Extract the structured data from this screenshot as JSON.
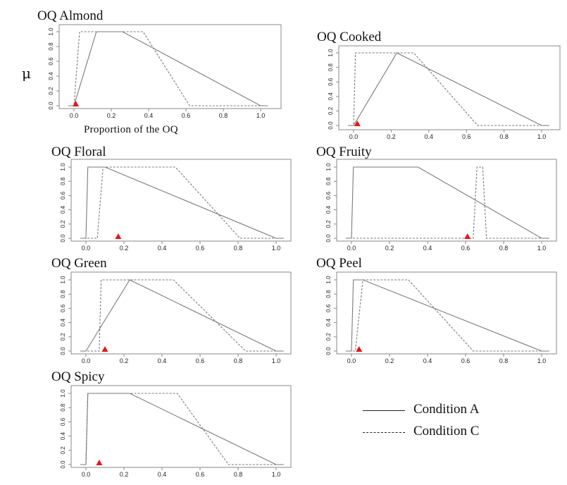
{
  "y_symbol": "μ",
  "x_axis_label": "Proportion of the OQ",
  "legend": {
    "solid_label": "Condition A",
    "dashed_label": "Condition C"
  },
  "colors": {
    "marker": "#e8141c",
    "line": "#7a7a7a",
    "frame": "#8a8a8a"
  },
  "chart_data": [
    {
      "type": "line",
      "title": "OQ Almond",
      "xlim": [
        0,
        1
      ],
      "ylim": [
        0,
        1
      ],
      "x_ticks": [
        "0.0",
        "0.2",
        "0.4",
        "0.6",
        "0.8",
        "1.0"
      ],
      "y_ticks": [
        "0.0",
        "0.2",
        "0.4",
        "0.6",
        "0.8",
        "1.0"
      ],
      "series": [
        {
          "name": "Condition A",
          "style": "solid",
          "x": [
            -0.03,
            0.0,
            0.12,
            0.26,
            1.0,
            1.04
          ],
          "y": [
            0,
            0,
            1,
            1,
            0,
            0
          ]
        },
        {
          "name": "Condition C",
          "style": "dashed",
          "x": [
            -0.03,
            0.0,
            0.03,
            0.37,
            0.62,
            1.04
          ],
          "y": [
            0,
            0,
            1,
            1,
            0,
            0
          ]
        }
      ],
      "marker": 0.01
    },
    {
      "type": "line",
      "title": "OQ Cooked",
      "xlim": [
        0,
        1
      ],
      "ylim": [
        0,
        1
      ],
      "x_ticks": [
        "0.0",
        "0.2",
        "0.4",
        "0.6",
        "0.8",
        "1.0"
      ],
      "y_ticks": [
        "0.0",
        "0.2",
        "0.4",
        "0.6",
        "0.8",
        "1.0"
      ],
      "series": [
        {
          "name": "Condition A",
          "style": "solid",
          "x": [
            -0.03,
            0.0,
            0.23,
            1.0,
            1.04
          ],
          "y": [
            0,
            0,
            1,
            0,
            0
          ]
        },
        {
          "name": "Condition C",
          "style": "dashed",
          "x": [
            -0.03,
            0.0,
            0.01,
            0.32,
            0.66,
            1.04
          ],
          "y": [
            0,
            0,
            1,
            1,
            0,
            0
          ]
        }
      ],
      "marker": 0.02
    },
    {
      "type": "line",
      "title": "OQ Floral",
      "xlim": [
        0,
        1
      ],
      "ylim": [
        0,
        1
      ],
      "x_ticks": [
        "0.0",
        "0.2",
        "0.4",
        "0.6",
        "0.8",
        "1.0"
      ],
      "y_ticks": [
        "0.0",
        "0.2",
        "0.4",
        "0.6",
        "0.8",
        "1.0"
      ],
      "series": [
        {
          "name": "Condition A",
          "style": "solid",
          "x": [
            -0.03,
            0.0,
            0.01,
            0.1,
            1.0,
            1.04
          ],
          "y": [
            0,
            0,
            1,
            1,
            0,
            0
          ]
        },
        {
          "name": "Condition C",
          "style": "dashed",
          "x": [
            -0.03,
            0.06,
            0.09,
            0.47,
            0.81,
            1.04
          ],
          "y": [
            0,
            0,
            1,
            1,
            0,
            0
          ]
        }
      ],
      "marker": 0.17
    },
    {
      "type": "line",
      "title": "OQ Fruity",
      "xlim": [
        0,
        1
      ],
      "ylim": [
        0,
        1
      ],
      "x_ticks": [
        "0.0",
        "0.2",
        "0.4",
        "0.6",
        "0.8",
        "1.0"
      ],
      "y_ticks": [
        "0.0",
        "0.2",
        "0.4",
        "0.6",
        "0.8",
        "1.0"
      ],
      "series": [
        {
          "name": "Condition A",
          "style": "solid",
          "x": [
            -0.03,
            0.0,
            0.01,
            0.35,
            1.0,
            1.04
          ],
          "y": [
            0,
            0,
            1,
            1,
            0,
            0
          ]
        },
        {
          "name": "Condition C",
          "style": "dashed",
          "x": [
            -0.03,
            0.64,
            0.66,
            0.69,
            0.71,
            1.04
          ],
          "y": [
            0,
            0,
            1,
            1,
            0,
            0
          ]
        }
      ],
      "marker": 0.61
    },
    {
      "type": "line",
      "title": "OQ Green",
      "xlim": [
        0,
        1
      ],
      "ylim": [
        0,
        1
      ],
      "x_ticks": [
        "0.0",
        "0.2",
        "0.4",
        "0.6",
        "0.8",
        "1.0"
      ],
      "y_ticks": [
        "0.0",
        "0.2",
        "0.4",
        "0.6",
        "0.8",
        "1.0"
      ],
      "series": [
        {
          "name": "Condition A",
          "style": "solid",
          "x": [
            -0.03,
            0.0,
            0.23,
            1.0,
            1.04
          ],
          "y": [
            0,
            0,
            1,
            0,
            0
          ]
        },
        {
          "name": "Condition C",
          "style": "dashed",
          "x": [
            -0.03,
            0.07,
            0.08,
            0.46,
            0.84,
            1.04
          ],
          "y": [
            0,
            0,
            1,
            1,
            0,
            0
          ]
        }
      ],
      "marker": 0.1
    },
    {
      "type": "line",
      "title": "OQ Peel",
      "xlim": [
        0,
        1
      ],
      "ylim": [
        0,
        1
      ],
      "x_ticks": [
        "0.0",
        "0.2",
        "0.4",
        "0.6",
        "0.8",
        "1.0"
      ],
      "y_ticks": [
        "0.0",
        "0.2",
        "0.4",
        "0.6",
        "0.8",
        "1.0"
      ],
      "series": [
        {
          "name": "Condition A",
          "style": "solid",
          "x": [
            -0.03,
            0.0,
            0.01,
            0.06,
            1.0,
            1.04
          ],
          "y": [
            0,
            0,
            1,
            1,
            0,
            0
          ]
        },
        {
          "name": "Condition C",
          "style": "dashed",
          "x": [
            -0.03,
            0.02,
            0.06,
            0.3,
            0.64,
            1.04
          ],
          "y": [
            0,
            0,
            1,
            1,
            0,
            0
          ]
        }
      ],
      "marker": 0.04
    },
    {
      "type": "line",
      "title": "OQ Spicy",
      "xlim": [
        0,
        1
      ],
      "ylim": [
        0,
        1
      ],
      "x_ticks": [
        "0.0",
        "0.2",
        "0.4",
        "0.6",
        "0.8",
        "1.0"
      ],
      "y_ticks": [
        "0.0",
        "0.2",
        "0.4",
        "0.6",
        "0.8",
        "1.0"
      ],
      "series": [
        {
          "name": "Condition A",
          "style": "solid",
          "x": [
            -0.03,
            0.0,
            0.01,
            0.23,
            1.0,
            1.04
          ],
          "y": [
            0,
            0,
            1,
            1,
            0,
            0
          ]
        },
        {
          "name": "Condition C",
          "style": "dashed",
          "x": [
            -0.03,
            0.0,
            0.01,
            0.48,
            0.75,
            1.04
          ],
          "y": [
            0,
            0,
            1,
            1,
            0,
            0
          ]
        }
      ],
      "marker": 0.07
    }
  ]
}
